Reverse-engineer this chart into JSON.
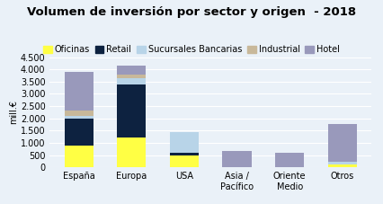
{
  "title": "Volumen de inversión por sector y origen  - 2018",
  "ylabel": "mill.€",
  "categories": [
    "España",
    "Europa",
    "USA",
    "Asia /\nPacífico",
    "Oriente\nMedio",
    "Otros"
  ],
  "segments": {
    "Oficinas": [
      900,
      1200,
      500,
      0,
      0,
      100
    ],
    "Retail": [
      1100,
      2200,
      100,
      0,
      0,
      0
    ],
    "Sucursales Bancarias": [
      100,
      250,
      850,
      0,
      0,
      120
    ],
    "Industrial": [
      200,
      150,
      0,
      0,
      0,
      0
    ],
    "Hotel": [
      1600,
      350,
      0,
      650,
      600,
      1550
    ]
  },
  "colors": {
    "Oficinas": "#FFFF44",
    "Retail": "#0D2240",
    "Sucursales Bancarias": "#B8D4E8",
    "Industrial": "#C8B89A",
    "Hotel": "#9999BB"
  },
  "ylim": [
    0,
    4500
  ],
  "yticks": [
    0,
    500,
    1000,
    1500,
    2000,
    2500,
    3000,
    3500,
    4000,
    4500
  ],
  "background_color": "#EAF1F8",
  "title_fontsize": 9.5,
  "legend_fontsize": 7,
  "tick_fontsize": 7,
  "ylabel_fontsize": 7
}
